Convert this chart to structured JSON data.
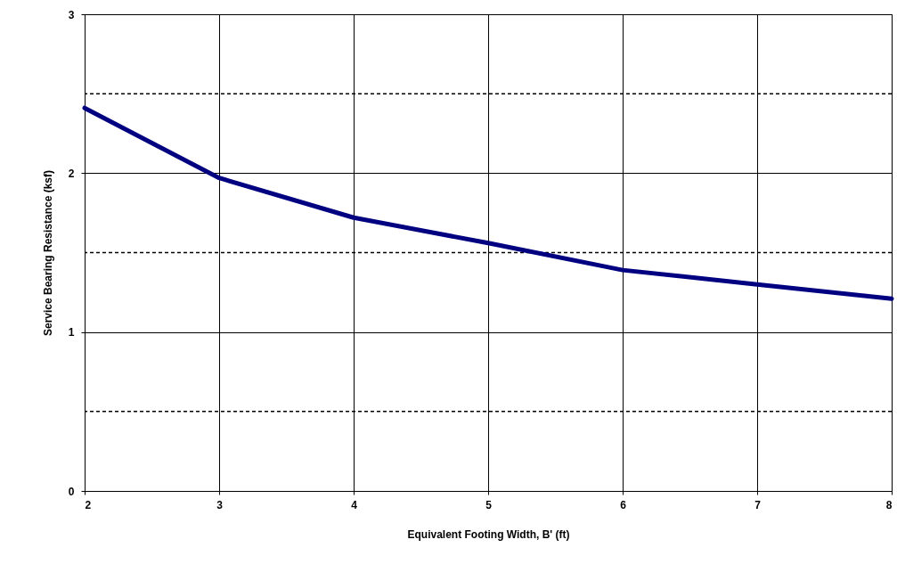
{
  "chart_data": {
    "type": "line",
    "xlabel": "Equivalent Footing Width, B' (ft)",
    "ylabel": "Service Bearing Resistance  (ksf)",
    "x": [
      2,
      3,
      4,
      5,
      6,
      7,
      8
    ],
    "series": [
      {
        "color": "#000080",
        "values": [
          2.41,
          1.97,
          1.72,
          1.56,
          1.39,
          1.3,
          1.21
        ]
      }
    ],
    "xlim": [
      2,
      8
    ],
    "xticks": [
      2,
      3,
      4,
      5,
      6,
      7,
      8
    ],
    "ylim": [
      0,
      3
    ],
    "yticks": [
      0,
      1,
      2,
      3
    ],
    "grid": true,
    "ref_lines": [
      {
        "axis": "y",
        "value": 0.5,
        "color": "#000000",
        "line_style": "dashed"
      },
      {
        "axis": "y",
        "value": 1.5,
        "color": "#000000",
        "line_style": "dashed"
      },
      {
        "axis": "y",
        "value": 2.5,
        "color": "#000000",
        "line_style": "dashed"
      }
    ]
  }
}
